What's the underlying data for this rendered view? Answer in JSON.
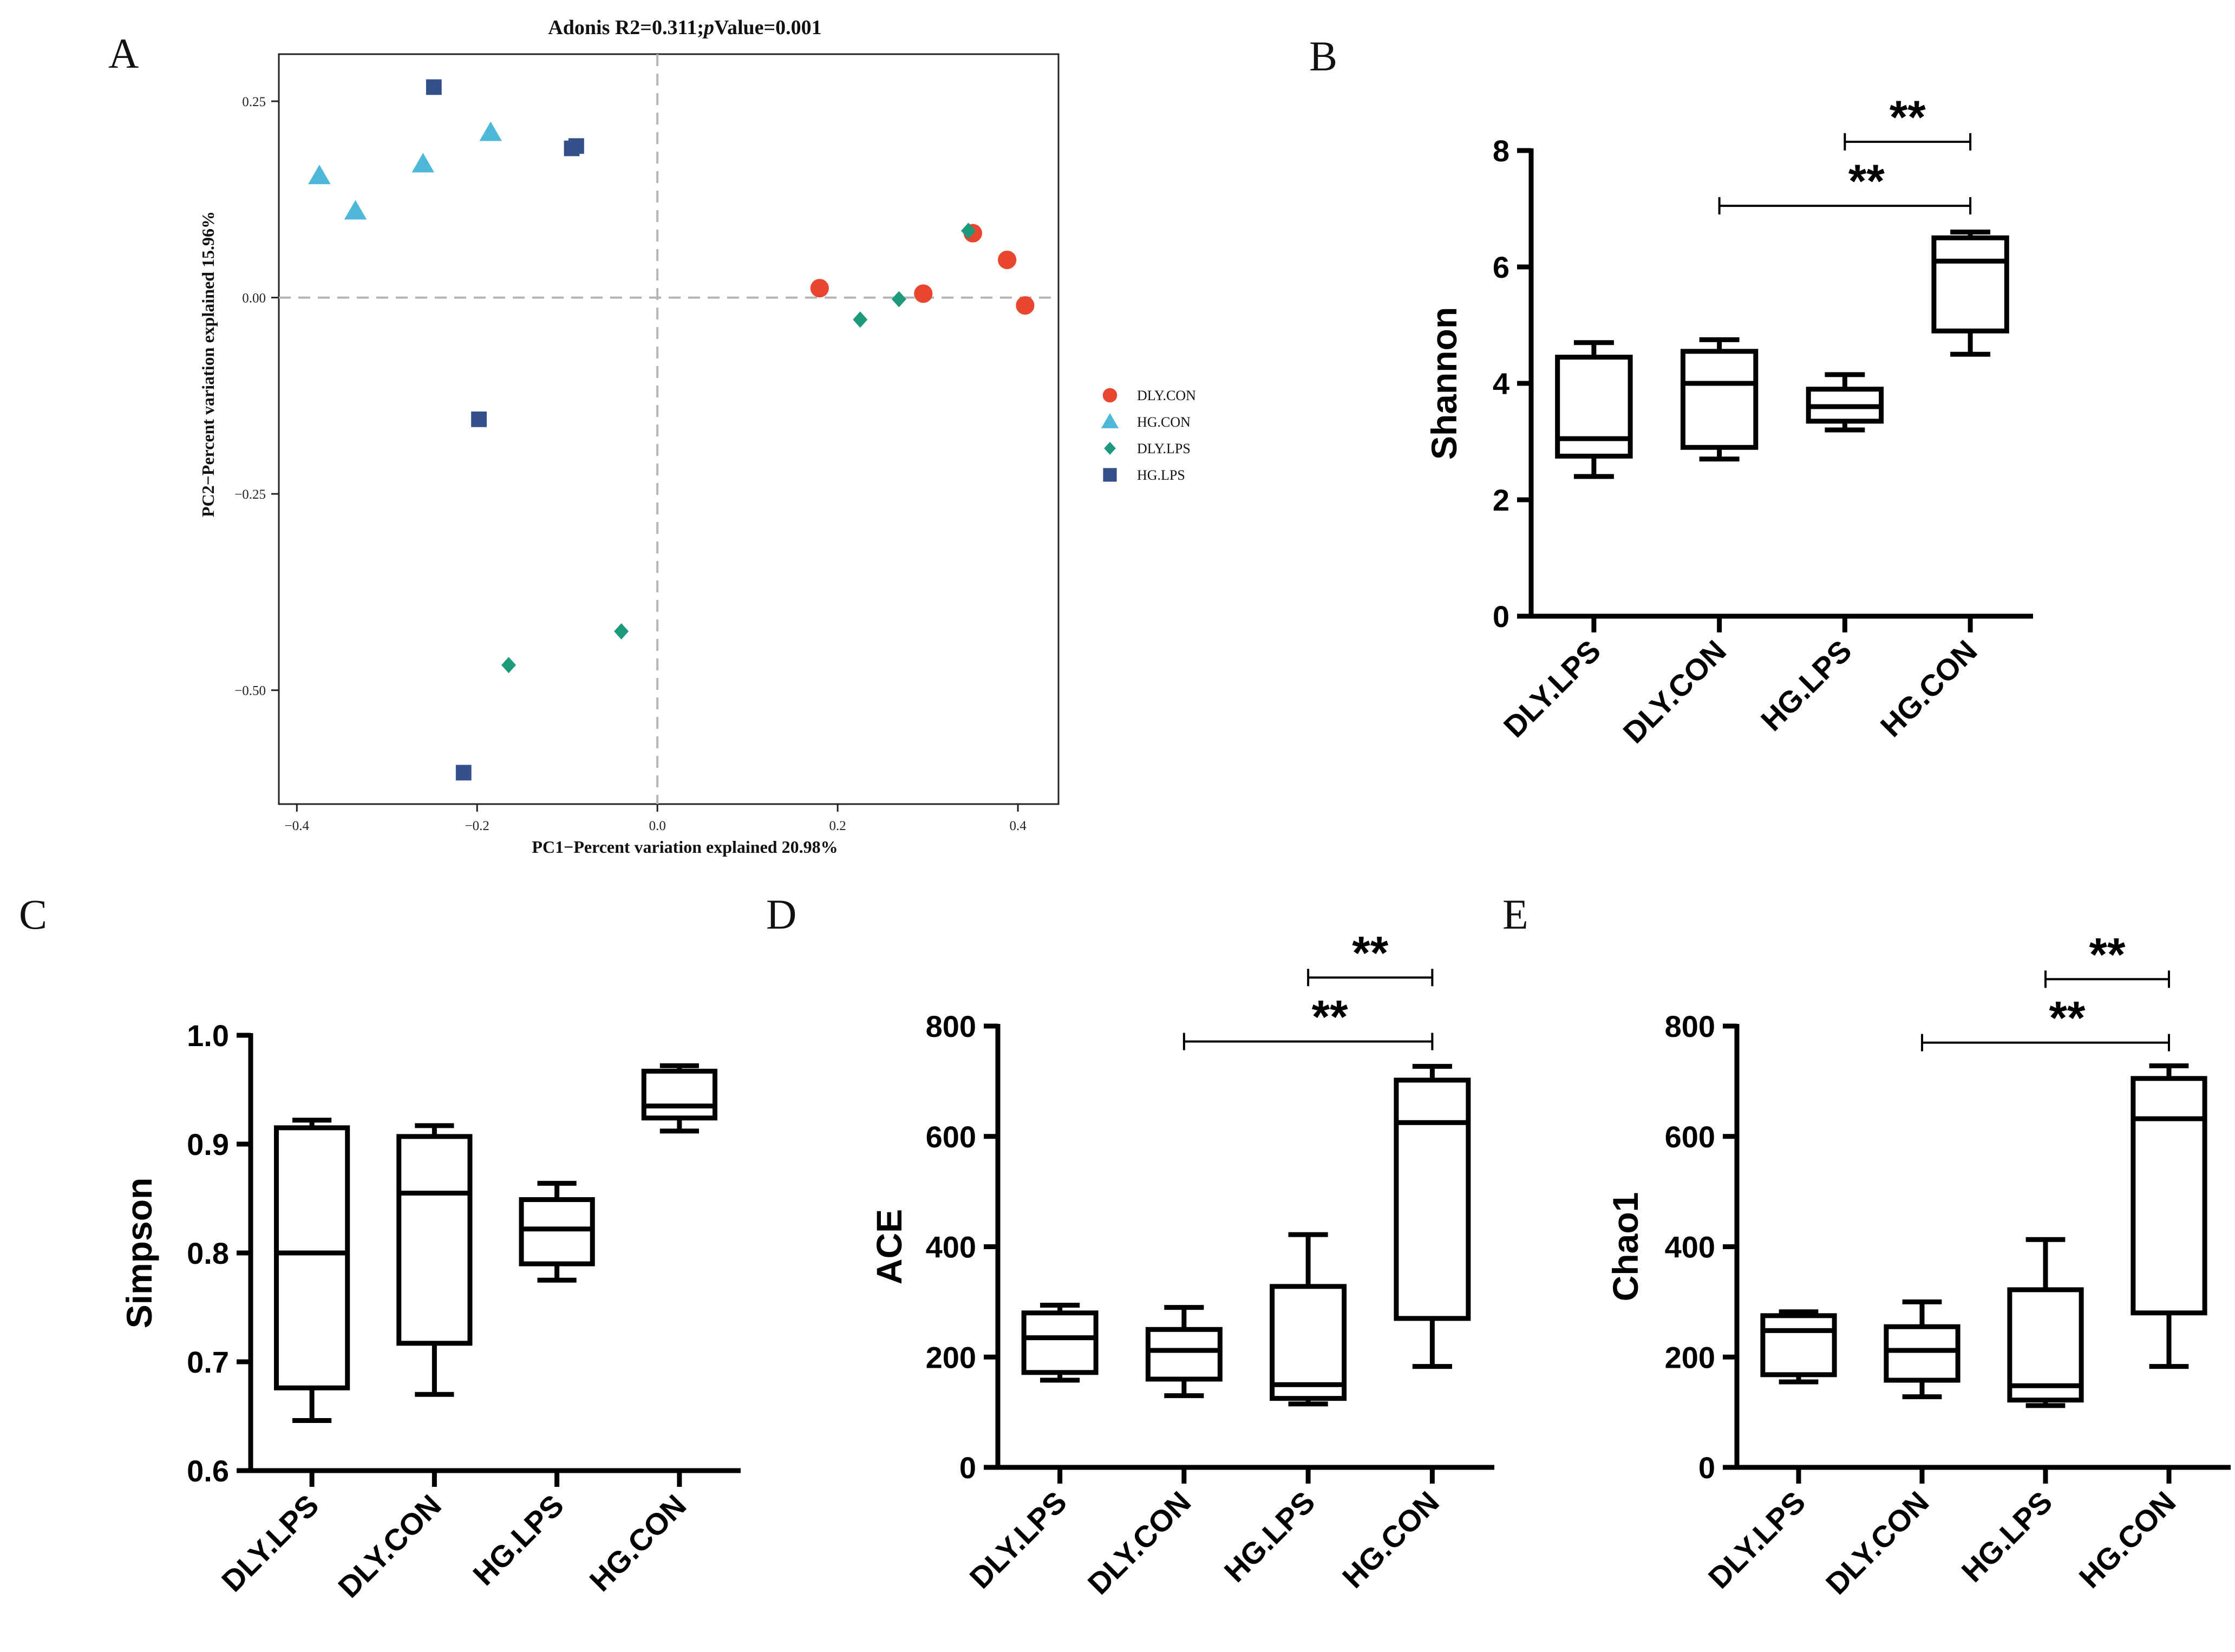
{
  "chart_data": [
    {
      "id": "A",
      "panel_label": "A",
      "type": "scatter",
      "title_prefix": "Adonis R2=0.311;",
      "title_p": "p",
      "title_suffix": "Value=0.001",
      "xlabel": "PC1−Percent variation explained 20.98%",
      "ylabel": "PC2−Percent variation explained 15.96%",
      "xlim": [
        -0.42,
        0.445
      ],
      "ylim": [
        -0.645,
        0.31
      ],
      "xticks": [
        -0.4,
        -0.2,
        0.0,
        0.2,
        0.4
      ],
      "xtick_labels": [
        "−0.4",
        "−0.2",
        "0.0",
        "0.2",
        "0.4"
      ],
      "yticks": [
        0.25,
        0.0,
        -0.25,
        -0.5
      ],
      "ytick_labels": [
        "0.25",
        "0.00",
        "−0.25",
        "−0.50"
      ],
      "reference_lines": {
        "x": 0,
        "y": 0,
        "style": "dashed"
      },
      "legend_position": "right",
      "series": [
        {
          "name": "DLY.CON",
          "marker": "circle",
          "color": "#e8462e",
          "points": [
            [
              0.18,
              0.012
            ],
            [
              0.295,
              0.005
            ],
            [
              0.35,
              0.082
            ],
            [
              0.388,
              0.048
            ],
            [
              0.408,
              -0.01
            ]
          ]
        },
        {
          "name": "HG.CON",
          "marker": "triangle",
          "color": "#4db8d8",
          "points": [
            [
              -0.375,
              0.155
            ],
            [
              -0.335,
              0.11
            ],
            [
              -0.26,
              0.17
            ],
            [
              -0.185,
              0.21
            ]
          ]
        },
        {
          "name": "DLY.LPS",
          "marker": "diamond",
          "color": "#1b9a7c",
          "points": [
            [
              0.345,
              0.085
            ],
            [
              0.225,
              -0.028
            ],
            [
              0.268,
              -0.002
            ],
            [
              -0.165,
              -0.468
            ],
            [
              -0.04,
              -0.425
            ]
          ]
        },
        {
          "name": "HG.LPS",
          "marker": "square",
          "color": "#34508a",
          "points": [
            [
              -0.248,
              0.268
            ],
            [
              -0.095,
              0.19
            ],
            [
              -0.09,
              0.193
            ],
            [
              -0.198,
              -0.155
            ],
            [
              -0.215,
              -0.605
            ]
          ]
        }
      ]
    },
    {
      "id": "B",
      "panel_label": "B",
      "type": "box",
      "ylabel": "Shannon",
      "ylim": [
        0,
        8
      ],
      "yticks": [
        0,
        2,
        4,
        6,
        8
      ],
      "ytick_labels": [
        "0",
        "2",
        "4",
        "6",
        "8"
      ],
      "categories": [
        "DLY.LPS",
        "DLY.CON",
        "HG.LPS",
        "HG.CON"
      ],
      "boxes": [
        {
          "min": 2.4,
          "q1": 2.75,
          "median": 3.05,
          "q3": 4.45,
          "max": 4.7
        },
        {
          "min": 2.7,
          "q1": 2.9,
          "median": 4.0,
          "q3": 4.55,
          "max": 4.75
        },
        {
          "min": 3.2,
          "q1": 3.35,
          "median": 3.6,
          "q3": 3.9,
          "max": 4.15
        },
        {
          "min": 4.5,
          "q1": 4.9,
          "median": 6.1,
          "q3": 6.5,
          "max": 6.6
        }
      ],
      "significance": [
        {
          "from": 2,
          "to": 3,
          "label": "**",
          "y": 8.15
        },
        {
          "from": 1,
          "to": 3,
          "label": "**",
          "y": 7.05
        }
      ]
    },
    {
      "id": "C",
      "panel_label": "C",
      "type": "box",
      "ylabel": "Simpson",
      "ylim": [
        0.6,
        1.0
      ],
      "yticks": [
        0.6,
        0.7,
        0.8,
        0.9,
        1.0
      ],
      "ytick_labels": [
        "0.6",
        "0.7",
        "0.8",
        "0.9",
        "1.0"
      ],
      "categories": [
        "DLY.LPS",
        "DLY.CON",
        "HG.LPS",
        "HG.CON"
      ],
      "boxes": [
        {
          "min": 0.646,
          "q1": 0.676,
          "median": 0.8,
          "q3": 0.915,
          "max": 0.922
        },
        {
          "min": 0.67,
          "q1": 0.717,
          "median": 0.855,
          "q3": 0.907,
          "max": 0.917
        },
        {
          "min": 0.775,
          "q1": 0.79,
          "median": 0.822,
          "q3": 0.849,
          "max": 0.864
        },
        {
          "min": 0.912,
          "q1": 0.924,
          "median": 0.935,
          "q3": 0.967,
          "max": 0.972
        }
      ],
      "significance": []
    },
    {
      "id": "D",
      "panel_label": "D",
      "type": "box",
      "ylabel": "ACE",
      "ylim": [
        0,
        800
      ],
      "yticks": [
        0,
        200,
        400,
        600,
        800
      ],
      "ytick_labels": [
        "0",
        "200",
        "400",
        "600",
        "800"
      ],
      "categories": [
        "DLY.LPS",
        "DLY.CON",
        "HG.LPS",
        "HG.CON"
      ],
      "boxes": [
        {
          "min": 158,
          "q1": 172,
          "median": 235,
          "q3": 280,
          "max": 294
        },
        {
          "min": 130,
          "q1": 160,
          "median": 212,
          "q3": 250,
          "max": 290
        },
        {
          "min": 115,
          "q1": 125,
          "median": 150,
          "q3": 328,
          "max": 422
        },
        {
          "min": 183,
          "q1": 270,
          "median": 625,
          "q3": 702,
          "max": 727
        }
      ],
      "significance": [
        {
          "from": 2,
          "to": 3,
          "label": "**",
          "y": 888
        },
        {
          "from": 1,
          "to": 3,
          "label": "**",
          "y": 772
        }
      ]
    },
    {
      "id": "E",
      "panel_label": "E",
      "type": "box",
      "ylabel": "Chao1",
      "ylim": [
        0,
        800
      ],
      "yticks": [
        0,
        200,
        400,
        600,
        800
      ],
      "ytick_labels": [
        "0",
        "200",
        "400",
        "600",
        "800"
      ],
      "categories": [
        "DLY.LPS",
        "DLY.CON",
        "HG.LPS",
        "HG.CON"
      ],
      "boxes": [
        {
          "min": 155,
          "q1": 168,
          "median": 248,
          "q3": 275,
          "max": 282
        },
        {
          "min": 128,
          "q1": 158,
          "median": 212,
          "q3": 255,
          "max": 300
        },
        {
          "min": 112,
          "q1": 122,
          "median": 148,
          "q3": 322,
          "max": 413
        },
        {
          "min": 183,
          "q1": 280,
          "median": 632,
          "q3": 705,
          "max": 728
        }
      ],
      "significance": [
        {
          "from": 2,
          "to": 3,
          "label": "**",
          "y": 885
        },
        {
          "from": 1,
          "to": 3,
          "label": "**",
          "y": 770
        }
      ]
    }
  ]
}
